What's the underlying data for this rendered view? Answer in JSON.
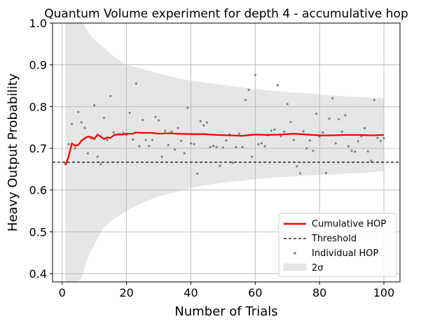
{
  "chart_data": {
    "type": "line",
    "title": "Quantum Volume experiment for depth 4 - accumulative hop",
    "xlabel": "Number of Trials",
    "ylabel": "Heavy Output Probability",
    "xlim": [
      -3,
      105
    ],
    "ylim": [
      0.38,
      1.0
    ],
    "xticks": [
      0,
      20,
      40,
      60,
      80,
      100
    ],
    "yticks": [
      0.4,
      0.5,
      0.6,
      0.7,
      0.8,
      0.9,
      1.0
    ],
    "xtick_labels": [
      "0",
      "20",
      "40",
      "60",
      "80",
      "100"
    ],
    "ytick_labels": [
      "0.4",
      "0.5",
      "0.6",
      "0.7",
      "0.8",
      "0.9",
      "1.0"
    ],
    "grid": true,
    "legend_position": "lower-right",
    "colors": {
      "cumulative": "#ff0000",
      "threshold": "#000000",
      "points": "#808080",
      "band": "#d3d3d3"
    },
    "threshold": 0.6667,
    "legend": {
      "cumulative": "Cumulative HOP",
      "threshold": "Threshold",
      "individual": "Individual HOP",
      "band": "2σ"
    },
    "individual_hop": [
      [
        1,
        0.663
      ],
      [
        2,
        0.71
      ],
      [
        3,
        0.758
      ],
      [
        4,
        0.7
      ],
      [
        5,
        0.787
      ],
      [
        6,
        0.762
      ],
      [
        7,
        0.749
      ],
      [
        8,
        0.688
      ],
      [
        9,
        0.724
      ],
      [
        10,
        0.803
      ],
      [
        11,
        0.68
      ],
      [
        12,
        0.662
      ],
      [
        13,
        0.773
      ],
      [
        14,
        0.72
      ],
      [
        15,
        0.825
      ],
      [
        16,
        0.738
      ],
      [
        17,
        0.733
      ],
      [
        18,
        0.734
      ],
      [
        19,
        0.737
      ],
      [
        20,
        0.732
      ],
      [
        21,
        0.785
      ],
      [
        22,
        0.721
      ],
      [
        23,
        0.855
      ],
      [
        24,
        0.705
      ],
      [
        25,
        0.768
      ],
      [
        26,
        0.72
      ],
      [
        27,
        0.706
      ],
      [
        28,
        0.72
      ],
      [
        29,
        0.775
      ],
      [
        30,
        0.767
      ],
      [
        31,
        0.68
      ],
      [
        32,
        0.742
      ],
      [
        33,
        0.708
      ],
      [
        34,
        0.74
      ],
      [
        35,
        0.697
      ],
      [
        36,
        0.749
      ],
      [
        37,
        0.718
      ],
      [
        38,
        0.688
      ],
      [
        39,
        0.797
      ],
      [
        40,
        0.712
      ],
      [
        41,
        0.71
      ],
      [
        42,
        0.639
      ],
      [
        43,
        0.765
      ],
      [
        44,
        0.755
      ],
      [
        45,
        0.762
      ],
      [
        46,
        0.703
      ],
      [
        47,
        0.706
      ],
      [
        48,
        0.703
      ],
      [
        49,
        0.658
      ],
      [
        50,
        0.702
      ],
      [
        51,
        0.719
      ],
      [
        52,
        0.733
      ],
      [
        53,
        0.665
      ],
      [
        54,
        0.703
      ],
      [
        55,
        0.735
      ],
      [
        56,
        0.703
      ],
      [
        57,
        0.816
      ],
      [
        58,
        0.84
      ],
      [
        59,
        0.68
      ],
      [
        60,
        0.876
      ],
      [
        61,
        0.71
      ],
      [
        62,
        0.712
      ],
      [
        63,
        0.705
      ],
      [
        64,
        0.731
      ],
      [
        65,
        0.742
      ],
      [
        66,
        0.745
      ],
      [
        67,
        0.851
      ],
      [
        68,
        0.729
      ],
      [
        69,
        0.74
      ],
      [
        70,
        0.806
      ],
      [
        71,
        0.763
      ],
      [
        72,
        0.72
      ],
      [
        73,
        0.657
      ],
      [
        74,
        0.64
      ],
      [
        75,
        0.741
      ],
      [
        76,
        0.7
      ],
      [
        77,
        0.719
      ],
      [
        78,
        0.694
      ],
      [
        79,
        0.783
      ],
      [
        80,
        0.728
      ],
      [
        81,
        0.738
      ],
      [
        82,
        0.641
      ],
      [
        83,
        0.771
      ],
      [
        84,
        0.82
      ],
      [
        85,
        0.712
      ],
      [
        86,
        0.77
      ],
      [
        87,
        0.74
      ],
      [
        88,
        0.779
      ],
      [
        89,
        0.705
      ],
      [
        90,
        0.694
      ],
      [
        91,
        0.692
      ],
      [
        92,
        0.717
      ],
      [
        93,
        0.729
      ],
      [
        94,
        0.748
      ],
      [
        95,
        0.693
      ],
      [
        96,
        0.67
      ],
      [
        97,
        0.816
      ],
      [
        98,
        0.725
      ],
      [
        99,
        0.718
      ],
      [
        100,
        0.724
      ]
    ],
    "cumulative_hop": [
      [
        1,
        0.66
      ],
      [
        2,
        0.68
      ],
      [
        3,
        0.712
      ],
      [
        4,
        0.706
      ],
      [
        5,
        0.708
      ],
      [
        6,
        0.718
      ],
      [
        7,
        0.724
      ],
      [
        8,
        0.728
      ],
      [
        9,
        0.727
      ],
      [
        10,
        0.722
      ],
      [
        11,
        0.733
      ],
      [
        12,
        0.728
      ],
      [
        13,
        0.722
      ],
      [
        14,
        0.726
      ],
      [
        15,
        0.725
      ],
      [
        16,
        0.731
      ],
      [
        17,
        0.733
      ],
      [
        18,
        0.733
      ],
      [
        19,
        0.733
      ],
      [
        20,
        0.735
      ],
      [
        22,
        0.735
      ],
      [
        23,
        0.738
      ],
      [
        25,
        0.737
      ],
      [
        28,
        0.737
      ],
      [
        30,
        0.735
      ],
      [
        33,
        0.736
      ],
      [
        36,
        0.735
      ],
      [
        40,
        0.734
      ],
      [
        44,
        0.734
      ],
      [
        48,
        0.732
      ],
      [
        52,
        0.731
      ],
      [
        56,
        0.73
      ],
      [
        60,
        0.733
      ],
      [
        64,
        0.732
      ],
      [
        68,
        0.733
      ],
      [
        72,
        0.735
      ],
      [
        76,
        0.733
      ],
      [
        80,
        0.731
      ],
      [
        84,
        0.731
      ],
      [
        88,
        0.732
      ],
      [
        92,
        0.732
      ],
      [
        96,
        0.731
      ],
      [
        100,
        0.732
      ]
    ],
    "band_upper": [
      [
        1,
        1.06
      ],
      [
        3,
        1.04
      ],
      [
        5,
        1.02
      ],
      [
        8,
        0.98
      ],
      [
        10,
        0.96
      ],
      [
        13,
        0.94
      ],
      [
        16,
        0.92
      ],
      [
        20,
        0.9
      ],
      [
        25,
        0.89
      ],
      [
        30,
        0.88
      ],
      [
        35,
        0.87
      ],
      [
        40,
        0.862
      ],
      [
        45,
        0.857
      ],
      [
        50,
        0.852
      ],
      [
        55,
        0.847
      ],
      [
        60,
        0.842
      ],
      [
        65,
        0.838
      ],
      [
        70,
        0.835
      ],
      [
        75,
        0.832
      ],
      [
        80,
        0.829
      ],
      [
        85,
        0.826
      ],
      [
        90,
        0.824
      ],
      [
        95,
        0.822
      ],
      [
        100,
        0.82
      ]
    ],
    "band_lower": [
      [
        1,
        0.38
      ],
      [
        3,
        0.38
      ],
      [
        5,
        0.38
      ],
      [
        6,
        0.39
      ],
      [
        8,
        0.44
      ],
      [
        10,
        0.47
      ],
      [
        13,
        0.51
      ],
      [
        16,
        0.53
      ],
      [
        20,
        0.55
      ],
      [
        25,
        0.57
      ],
      [
        30,
        0.585
      ],
      [
        35,
        0.595
      ],
      [
        40,
        0.605
      ],
      [
        45,
        0.612
      ],
      [
        50,
        0.618
      ],
      [
        55,
        0.622
      ],
      [
        60,
        0.626
      ],
      [
        65,
        0.629
      ],
      [
        70,
        0.632
      ],
      [
        75,
        0.634
      ],
      [
        80,
        0.636
      ],
      [
        85,
        0.638
      ],
      [
        90,
        0.64
      ],
      [
        95,
        0.642
      ],
      [
        100,
        0.645
      ]
    ]
  }
}
